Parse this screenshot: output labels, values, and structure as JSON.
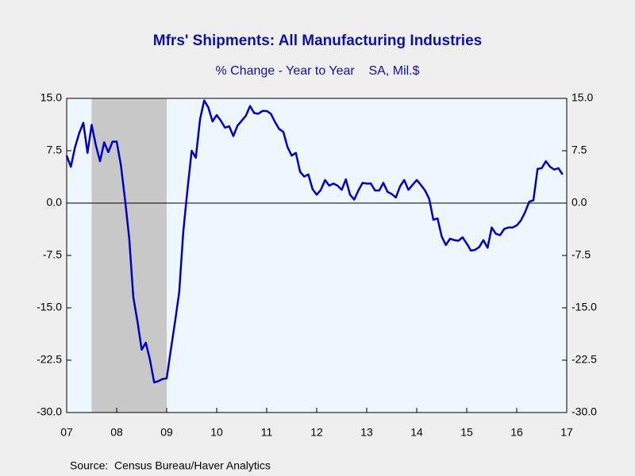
{
  "chart_data": {
    "type": "line",
    "title": "Mfrs' Shipments: All Manufacturing Industries",
    "subtitle": "% Change - Year to Year    SA, Mil.$",
    "source": "Source:  Census Bureau/Haver Analytics",
    "color": "#0000c0",
    "shaded_regions": [
      [
        2007.5,
        2009
      ]
    ],
    "x": [
      2007,
      2007.083,
      2007.167,
      2007.25,
      2007.333,
      2007.417,
      2007.5,
      2007.583,
      2007.667,
      2007.75,
      2007.833,
      2007.917,
      2008,
      2008.083,
      2008.167,
      2008.25,
      2008.333,
      2008.417,
      2008.5,
      2008.583,
      2008.667,
      2008.75,
      2008.833,
      2008.917,
      2009,
      2009.083,
      2009.167,
      2009.25,
      2009.333,
      2009.417,
      2009.5,
      2009.583,
      2009.667,
      2009.75,
      2009.833,
      2009.917,
      2010,
      2010.083,
      2010.167,
      2010.25,
      2010.333,
      2010.417,
      2010.5,
      2010.583,
      2010.667,
      2010.75,
      2010.833,
      2010.917,
      2011,
      2011.083,
      2011.167,
      2011.25,
      2011.333,
      2011.417,
      2011.5,
      2011.583,
      2011.667,
      2011.75,
      2011.833,
      2011.917,
      2012,
      2012.083,
      2012.167,
      2012.25,
      2012.333,
      2012.417,
      2012.5,
      2012.583,
      2012.667,
      2012.75,
      2012.833,
      2012.917,
      2013,
      2013.083,
      2013.167,
      2013.25,
      2013.333,
      2013.417,
      2013.5,
      2013.583,
      2013.667,
      2013.75,
      2013.833,
      2013.917,
      2014,
      2014.083,
      2014.167,
      2014.25,
      2014.333,
      2014.417,
      2014.5,
      2014.583,
      2014.667,
      2014.75,
      2014.833,
      2014.917,
      2015,
      2015.083,
      2015.167,
      2015.25,
      2015.333,
      2015.417,
      2015.5,
      2015.583,
      2015.667,
      2015.75,
      2015.833,
      2015.917,
      2016,
      2016.083,
      2016.167,
      2016.25,
      2016.333,
      2016.417,
      2016.5,
      2016.583,
      2016.667,
      2016.75,
      2016.833,
      2016.917
    ],
    "values": [
      6.8,
      5.2,
      8,
      10,
      11.5,
      7.2,
      11.2,
      8.3,
      6,
      8.7,
      7.3,
      8.8,
      8.8,
      5.5,
      0.5,
      -5,
      -13.5,
      -17,
      -21,
      -20,
      -22.5,
      -25.7,
      -25.5,
      -25.2,
      -25.1,
      -21,
      -17,
      -12.8,
      -4,
      2,
      7.5,
      6.5,
      12,
      14.7,
      13.7,
      11.7,
      12.6,
      11.8,
      10.8,
      11,
      9.6,
      11.1,
      11.8,
      12.5,
      13.9,
      12.9,
      12.8,
      13.2,
      13.2,
      12.8,
      11.6,
      10.6,
      10.2,
      8,
      6.8,
      7.2,
      4.5,
      3.8,
      4.1,
      2,
      1.2,
      1.9,
      3.3,
      2.5,
      2.8,
      2.5,
      1.9,
      3.4,
      1.2,
      0.5,
      1.8,
      2.9,
      2.8,
      2.8,
      1.8,
      1.8,
      2.9,
      1.6,
      1.3,
      0.8,
      2.4,
      3.3,
      1.9,
      2.6,
      3.3,
      2.6,
      1.8,
      0.6,
      -2.4,
      -2.2,
      -4.8,
      -6,
      -5.1,
      -5.3,
      -5.4,
      -4.9,
      -5.8,
      -6.8,
      -6.7,
      -6.3,
      -5.3,
      -6.4,
      -3.5,
      -4.4,
      -4.6,
      -3.7,
      -3.5,
      -3.5,
      -3.2,
      -2.5,
      -1.3,
      0.2,
      0.4,
      4.9,
      5,
      6,
      5.2,
      4.8,
      5,
      4.1
    ],
    "xlim": [
      2007,
      2017
    ],
    "xticks": [
      {
        "value": 2007,
        "label": "07"
      },
      {
        "value": 2008,
        "label": "08"
      },
      {
        "value": 2009,
        "label": "09"
      },
      {
        "value": 2010,
        "label": "10"
      },
      {
        "value": 2011,
        "label": "11"
      },
      {
        "value": 2012,
        "label": "12"
      },
      {
        "value": 2013,
        "label": "13"
      },
      {
        "value": 2014,
        "label": "14"
      },
      {
        "value": 2015,
        "label": "15"
      },
      {
        "value": 2016,
        "label": "16"
      },
      {
        "value": 2017,
        "label": "17"
      }
    ],
    "ylim": [
      -30,
      15
    ],
    "yticks": [
      {
        "value": -30,
        "label": "-30.0"
      },
      {
        "value": -22.5,
        "label": "-22.5"
      },
      {
        "value": -15,
        "label": "-15.0"
      },
      {
        "value": -7.5,
        "label": "-7.5"
      },
      {
        "value": 0,
        "label": "0.0"
      },
      {
        "value": 7.5,
        "label": "7.5"
      },
      {
        "value": 15,
        "label": "15.0"
      }
    ],
    "zero_line": true
  }
}
